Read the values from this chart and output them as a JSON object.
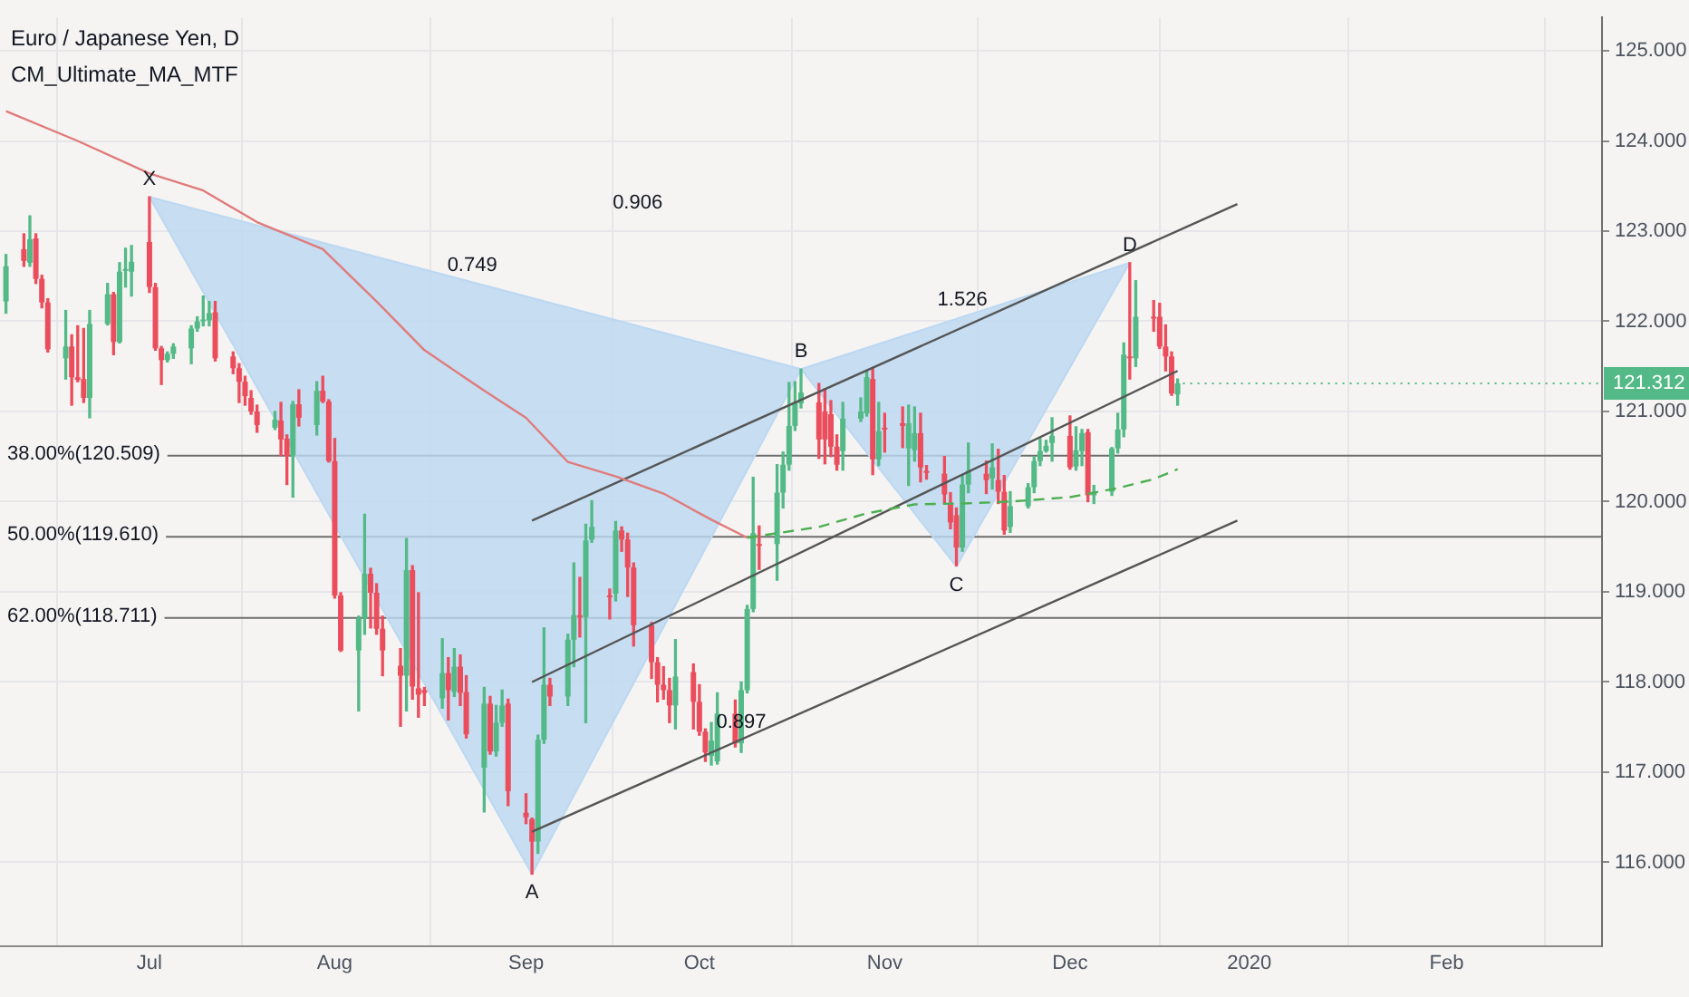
{
  "chart_data": {
    "type": "candlestick",
    "title": "Euro / Japanese Yen, D",
    "subtitle": "CM_Ultimate_MA_MTF",
    "x": [
      "2019-06-07",
      "2019-06-10",
      "2019-06-11",
      "2019-06-12",
      "2019-06-13",
      "2019-06-14",
      "2019-06-17",
      "2019-06-18",
      "2019-06-19",
      "2019-06-20",
      "2019-06-21",
      "2019-06-24",
      "2019-06-25",
      "2019-06-26",
      "2019-06-27",
      "2019-06-28",
      "2019-07-01",
      "2019-07-02",
      "2019-07-03",
      "2019-07-04",
      "2019-07-05",
      "2019-07-08",
      "2019-07-09",
      "2019-07-10",
      "2019-07-11",
      "2019-07-12",
      "2019-07-15",
      "2019-07-16",
      "2019-07-17",
      "2019-07-18",
      "2019-07-19",
      "2019-07-22",
      "2019-07-23",
      "2019-07-24",
      "2019-07-25",
      "2019-07-26",
      "2019-07-29",
      "2019-07-30",
      "2019-07-31",
      "2019-08-01",
      "2019-08-02",
      "2019-08-05",
      "2019-08-06",
      "2019-08-07",
      "2019-08-08",
      "2019-08-09",
      "2019-08-12",
      "2019-08-13",
      "2019-08-14",
      "2019-08-15",
      "2019-08-16",
      "2019-08-19",
      "2019-08-20",
      "2019-08-21",
      "2019-08-22",
      "2019-08-23",
      "2019-08-26",
      "2019-08-27",
      "2019-08-28",
      "2019-08-29",
      "2019-08-30",
      "2019-09-02",
      "2019-09-03",
      "2019-09-04",
      "2019-09-05",
      "2019-09-06",
      "2019-09-09",
      "2019-09-10",
      "2019-09-11",
      "2019-09-12",
      "2019-09-13",
      "2019-09-16",
      "2019-09-17",
      "2019-09-18",
      "2019-09-19",
      "2019-09-20",
      "2019-09-23",
      "2019-09-24",
      "2019-09-25",
      "2019-09-26",
      "2019-09-27",
      "2019-09-30",
      "2019-10-01",
      "2019-10-02",
      "2019-10-03",
      "2019-10-04",
      "2019-10-07",
      "2019-10-08",
      "2019-10-09",
      "2019-10-10",
      "2019-10-11",
      "2019-10-14",
      "2019-10-15",
      "2019-10-16",
      "2019-10-17",
      "2019-10-18",
      "2019-10-21",
      "2019-10-22",
      "2019-10-23",
      "2019-10-24",
      "2019-10-25",
      "2019-10-28",
      "2019-10-29",
      "2019-10-30",
      "2019-10-31",
      "2019-11-01",
      "2019-11-04",
      "2019-11-05",
      "2019-11-06",
      "2019-11-07",
      "2019-11-08",
      "2019-11-11",
      "2019-11-12",
      "2019-11-13",
      "2019-11-14",
      "2019-11-15",
      "2019-11-18",
      "2019-11-19",
      "2019-11-20",
      "2019-11-21",
      "2019-11-22",
      "2019-11-25",
      "2019-11-26",
      "2019-11-27",
      "2019-11-28",
      "2019-11-29",
      "2019-12-02",
      "2019-12-03",
      "2019-12-04",
      "2019-12-05",
      "2019-12-06",
      "2019-12-09",
      "2019-12-10",
      "2019-12-11",
      "2019-12-12",
      "2019-12-13",
      "2019-12-16",
      "2019-12-17",
      "2019-12-18",
      "2019-12-19",
      "2019-12-20"
    ],
    "ohlc": [
      [
        122.22,
        122.74,
        122.09,
        122.61
      ],
      [
        122.8,
        122.97,
        122.61,
        122.67
      ],
      [
        122.65,
        123.17,
        122.61,
        122.91
      ],
      [
        122.92,
        122.97,
        122.42,
        122.47
      ],
      [
        122.47,
        122.51,
        122.15,
        122.21
      ],
      [
        122.21,
        122.25,
        121.66,
        121.69
      ],
      [
        121.59,
        122.12,
        121.36,
        121.72
      ],
      [
        121.72,
        121.85,
        121.07,
        121.38
      ],
      [
        121.38,
        121.95,
        121.33,
        121.35
      ],
      [
        121.36,
        121.92,
        121.1,
        121.15
      ],
      [
        121.15,
        122.12,
        120.93,
        121.97
      ],
      [
        121.97,
        122.42,
        121.96,
        122.3
      ],
      [
        122.3,
        122.32,
        121.63,
        121.77
      ],
      [
        121.77,
        122.65,
        121.76,
        122.55
      ],
      [
        122.57,
        122.81,
        122.38,
        122.58
      ],
      [
        122.55,
        122.84,
        122.28,
        122.66
      ],
      [
        122.88,
        123.38,
        122.32,
        122.38
      ],
      [
        122.38,
        122.42,
        121.68,
        121.7
      ],
      [
        121.7,
        121.72,
        121.3,
        121.57
      ],
      [
        121.57,
        121.66,
        121.55,
        121.64
      ],
      [
        121.64,
        121.75,
        121.59,
        121.72
      ],
      [
        121.7,
        121.95,
        121.53,
        121.92
      ],
      [
        121.92,
        122.05,
        121.89,
        122.0
      ],
      [
        122.0,
        122.28,
        121.95,
        122.02
      ],
      [
        122.01,
        122.22,
        121.95,
        122.09
      ],
      [
        122.1,
        122.22,
        121.56,
        121.59
      ],
      [
        121.61,
        121.66,
        121.42,
        121.48
      ],
      [
        121.48,
        121.53,
        121.1,
        121.33
      ],
      [
        121.33,
        121.39,
        121.07,
        121.17
      ],
      [
        121.15,
        121.23,
        120.97,
        121.0
      ],
      [
        121.0,
        121.07,
        120.77,
        120.85
      ],
      [
        120.82,
        121.0,
        120.8,
        120.91
      ],
      [
        120.9,
        121.1,
        120.51,
        120.69
      ],
      [
        120.7,
        120.74,
        120.19,
        120.51
      ],
      [
        120.51,
        121.11,
        120.05,
        121.08
      ],
      [
        121.08,
        121.24,
        120.84,
        120.93
      ],
      [
        120.85,
        121.33,
        120.74,
        121.23
      ],
      [
        121.23,
        121.39,
        121.1,
        121.11
      ],
      [
        121.11,
        121.13,
        120.44,
        120.45
      ],
      [
        120.45,
        120.7,
        118.93,
        118.96
      ],
      [
        118.96,
        118.99,
        118.34,
        118.35
      ],
      [
        118.35,
        118.73,
        117.68,
        118.7
      ],
      [
        118.7,
        119.86,
        118.53,
        119.2
      ],
      [
        119.2,
        119.26,
        118.6,
        118.99
      ],
      [
        118.99,
        119.09,
        118.53,
        118.59
      ],
      [
        118.59,
        118.73,
        118.07,
        118.35
      ],
      [
        118.18,
        118.37,
        117.51,
        118.07
      ],
      [
        118.07,
        119.59,
        117.68,
        119.24
      ],
      [
        119.24,
        119.29,
        117.81,
        117.95
      ],
      [
        117.93,
        118.99,
        117.61,
        117.86
      ],
      [
        117.91,
        117.94,
        117.74,
        117.88
      ],
      [
        117.82,
        118.48,
        117.71,
        118.1
      ],
      [
        118.1,
        118.27,
        117.58,
        117.91
      ],
      [
        117.89,
        118.37,
        117.84,
        118.17
      ],
      [
        118.17,
        118.3,
        117.74,
        117.88
      ],
      [
        117.89,
        118.07,
        117.38,
        117.42
      ],
      [
        117.05,
        117.94,
        116.56,
        117.76
      ],
      [
        117.76,
        117.84,
        117.2,
        117.23
      ],
      [
        117.23,
        117.74,
        117.18,
        117.55
      ],
      [
        117.55,
        117.91,
        117.51,
        117.74
      ],
      [
        117.76,
        117.81,
        116.63,
        116.79
      ],
      [
        116.55,
        116.76,
        116.43,
        116.5
      ],
      [
        116.48,
        116.49,
        115.87,
        116.23
      ],
      [
        116.23,
        117.41,
        116.1,
        117.36
      ],
      [
        117.36,
        118.6,
        117.32,
        117.97
      ],
      [
        117.97,
        118.04,
        117.74,
        117.84
      ],
      [
        117.84,
        118.53,
        117.74,
        118.47
      ],
      [
        118.47,
        119.32,
        118.17,
        118.74
      ],
      [
        118.74,
        119.16,
        118.5,
        118.72
      ],
      [
        118.72,
        119.75,
        117.55,
        119.57
      ],
      [
        119.58,
        120.01,
        119.55,
        119.72
      ],
      [
        118.96,
        119.03,
        118.7,
        118.94
      ],
      [
        118.98,
        119.78,
        118.9,
        119.68
      ],
      [
        119.68,
        119.72,
        119.45,
        119.58
      ],
      [
        119.58,
        119.65,
        118.95,
        119.27
      ],
      [
        119.27,
        119.32,
        118.4,
        118.63
      ],
      [
        118.63,
        118.66,
        118.04,
        118.22
      ],
      [
        118.22,
        118.27,
        117.78,
        117.97
      ],
      [
        117.97,
        118.17,
        117.81,
        117.91
      ],
      [
        117.91,
        118.04,
        117.55,
        117.74
      ],
      [
        117.74,
        118.47,
        117.48,
        118.06
      ],
      [
        118.11,
        118.2,
        117.48,
        117.78
      ],
      [
        117.78,
        117.97,
        117.41,
        117.45
      ],
      [
        117.45,
        117.48,
        117.12,
        117.22
      ],
      [
        117.18,
        117.55,
        117.08,
        117.35
      ],
      [
        117.12,
        117.88,
        117.09,
        117.65
      ],
      [
        117.65,
        117.8,
        117.28,
        117.32
      ],
      [
        117.32,
        118.0,
        117.22,
        117.91
      ],
      [
        117.91,
        118.85,
        117.88,
        118.81
      ],
      [
        118.81,
        120.27,
        118.78,
        119.65
      ],
      [
        119.53,
        119.73,
        119.25,
        119.51
      ],
      [
        119.53,
        120.41,
        119.13,
        120.1
      ],
      [
        120.1,
        120.55,
        119.93,
        120.41
      ],
      [
        120.41,
        121.32,
        120.35,
        120.84
      ],
      [
        120.84,
        121.33,
        120.79,
        121.1
      ],
      [
        121.09,
        121.47,
        121.04,
        121.21
      ],
      [
        121.1,
        121.31,
        120.48,
        120.69
      ],
      [
        121.0,
        121.25,
        120.42,
        120.69
      ],
      [
        120.97,
        121.12,
        120.5,
        120.61
      ],
      [
        120.61,
        120.74,
        120.35,
        120.41
      ],
      [
        120.56,
        121.1,
        120.35,
        120.92
      ],
      [
        120.92,
        121.15,
        120.89,
        121.0
      ],
      [
        120.98,
        121.45,
        120.95,
        121.38
      ],
      [
        121.36,
        121.48,
        120.3,
        120.47
      ],
      [
        120.47,
        121.1,
        120.4,
        120.78
      ],
      [
        120.82,
        120.98,
        120.55,
        120.8
      ],
      [
        120.87,
        121.05,
        120.6,
        120.84
      ],
      [
        120.59,
        121.07,
        120.18,
        120.87
      ],
      [
        120.57,
        121.05,
        120.45,
        120.76
      ],
      [
        120.76,
        120.98,
        120.22,
        120.38
      ],
      [
        120.34,
        120.4,
        120.25,
        120.32
      ],
      [
        120.31,
        120.5,
        119.98,
        120.08
      ],
      [
        119.97,
        120.1,
        119.7,
        119.77
      ],
      [
        119.85,
        119.93,
        119.29,
        119.49
      ],
      [
        119.49,
        120.29,
        119.45,
        120.19
      ],
      [
        120.19,
        120.65,
        120.1,
        120.34
      ],
      [
        120.31,
        120.45,
        120.09,
        120.24
      ],
      [
        120.26,
        120.64,
        120.14,
        120.38
      ],
      [
        120.24,
        120.58,
        119.98,
        120.11
      ],
      [
        120.11,
        120.29,
        119.64,
        119.68
      ],
      [
        119.72,
        120.11,
        119.66,
        119.95
      ],
      [
        119.95,
        120.2,
        119.93,
        120.16
      ],
      [
        120.16,
        120.5,
        120.1,
        120.45
      ],
      [
        120.45,
        120.7,
        120.4,
        120.56
      ],
      [
        120.56,
        120.68,
        120.55,
        120.62
      ],
      [
        120.65,
        120.93,
        120.45,
        120.73
      ],
      [
        120.73,
        120.95,
        120.36,
        120.38
      ],
      [
        120.39,
        120.83,
        120.35,
        120.57
      ],
      [
        120.56,
        120.8,
        120.4,
        120.76
      ],
      [
        120.77,
        120.8,
        120.0,
        120.07
      ],
      [
        120.07,
        120.18,
        119.98,
        120.11
      ],
      [
        120.11,
        120.6,
        120.07,
        120.59
      ],
      [
        120.59,
        120.98,
        120.54,
        120.8
      ],
      [
        120.8,
        121.76,
        120.72,
        121.63
      ],
      [
        121.61,
        122.65,
        121.36,
        121.59
      ],
      [
        121.59,
        122.45,
        121.5,
        122.05
      ],
      [
        122.05,
        122.23,
        121.89,
        122.03
      ],
      [
        122.05,
        122.2,
        121.7,
        121.72
      ],
      [
        121.72,
        121.96,
        121.45,
        121.61
      ],
      [
        121.61,
        121.66,
        121.18,
        121.2
      ],
      [
        121.19,
        121.36,
        121.07,
        121.312
      ]
    ],
    "series": [
      {
        "type": "area",
        "color": "#bcd8f2",
        "x": [
          "2019-07-01",
          "2019-09-03",
          "2019-10-18",
          "2019-07-01"
        ],
        "values": [
          123.38,
          115.87,
          121.47,
          123.38
        ]
      },
      {
        "type": "area",
        "color": "#bcd8f2",
        "x": [
          "2019-10-18",
          "2019-11-13",
          "2019-12-12",
          "2019-10-18"
        ],
        "values": [
          121.47,
          119.28,
          122.65,
          121.47
        ]
      },
      {
        "type": "line",
        "color": "#e07b7b",
        "x": [
          "2019-06-07",
          "2019-06-19",
          "2019-07-01",
          "2019-07-10",
          "2019-07-19",
          "2019-07-30",
          "2019-08-08",
          "2019-08-16",
          "2019-08-26",
          "2019-09-02",
          "2019-09-09",
          "2019-09-17",
          "2019-09-25",
          "2019-10-03",
          "2019-10-09"
        ],
        "values": [
          124.33,
          124.0,
          123.64,
          123.45,
          123.1,
          122.8,
          122.22,
          121.68,
          121.23,
          120.93,
          120.44,
          120.28,
          120.09,
          119.8,
          119.6
        ]
      },
      {
        "type": "line",
        "color": "#4caf50",
        "line_style": "dashed",
        "x": [
          "2019-10-09",
          "2019-10-21",
          "2019-10-29",
          "2019-11-06",
          "2019-11-14",
          "2019-11-22",
          "2019-12-02",
          "2019-12-10",
          "2019-12-16",
          "2019-12-20"
        ],
        "values": [
          119.6,
          119.72,
          119.87,
          119.97,
          119.98,
          120.0,
          120.05,
          120.15,
          120.25,
          120.36
        ]
      },
      {
        "type": "line",
        "color": "#555555",
        "x": [
          "2019-09-03",
          "2019-12-30"
        ],
        "values": [
          119.79,
          123.3
        ]
      },
      {
        "type": "line",
        "color": "#555555",
        "x": [
          "2019-09-03",
          "2019-12-20"
        ],
        "values": [
          118.0,
          121.45
        ]
      },
      {
        "type": "line",
        "color": "#555555",
        "x": [
          "2019-09-03",
          "2019-12-30"
        ],
        "values": [
          116.34,
          119.79
        ]
      }
    ],
    "ref_lines": [
      {
        "axis": "y",
        "value": 120.509,
        "label": "38.00%(120.509)",
        "color": "#6e6e6e"
      },
      {
        "axis": "y",
        "value": 119.61,
        "label": "50.00%(119.610)",
        "color": "#6e6e6e"
      },
      {
        "axis": "y",
        "value": 118.711,
        "label": "62.00%(118.711)",
        "color": "#6e6e6e"
      }
    ],
    "annotations": [
      {
        "text": "X",
        "x": "2019-07-01",
        "y": 123.38
      },
      {
        "text": "A",
        "x": "2019-09-03",
        "y": 115.87
      },
      {
        "text": "B",
        "x": "2019-10-18",
        "y": 121.47
      },
      {
        "text": "C",
        "x": "2019-11-13",
        "y": 119.28
      },
      {
        "text": "D",
        "x": "2019-12-12",
        "y": 122.65
      },
      {
        "text": "0.749",
        "x": "2019-08-24",
        "y": 122.43
      },
      "0.906",
      {
        "text": "121.312",
        "x": "2019-12-20",
        "y": 121.312
      },
      {
        "text": "1.526",
        "x": "2019-11-14",
        "y": 122.05
      },
      {
        "text": "0.897",
        "x": "2019-10-08",
        "y": 117.36
      }
    ],
    "xlim": [
      "2019-06-06",
      "2020-02-29"
    ],
    "xticks": [
      {
        "value": "2019-07-01",
        "label": "Jul"
      },
      {
        "value": "2019-08-01",
        "label": "Aug"
      },
      {
        "value": "2019-09-02",
        "label": "Sep"
      },
      {
        "value": "2019-10-01",
        "label": "Oct"
      },
      {
        "value": "2019-11-01",
        "label": "Nov"
      },
      {
        "value": "2019-12-02",
        "label": "Dec"
      },
      {
        "value": "2020-01-01",
        "label": "2020"
      },
      {
        "value": "2020-02-03",
        "label": "Feb"
      }
    ],
    "ylim": [
      115.07,
      125.37
    ],
    "yticks": [
      {
        "value": 116,
        "label": "116.000"
      },
      {
        "value": 117,
        "label": "117.000"
      },
      {
        "value": 118,
        "label": "118.000"
      },
      {
        "value": 119,
        "label": "119.000"
      },
      {
        "value": 120,
        "label": "120.000"
      },
      {
        "value": 121,
        "label": "121.000"
      },
      {
        "value": 122,
        "label": "122.000"
      },
      {
        "value": 123,
        "label": "123.000"
      },
      {
        "value": 124,
        "label": "124.000"
      },
      {
        "value": 125,
        "label": "125.000"
      }
    ],
    "grid": true,
    "legend": false
  }
}
